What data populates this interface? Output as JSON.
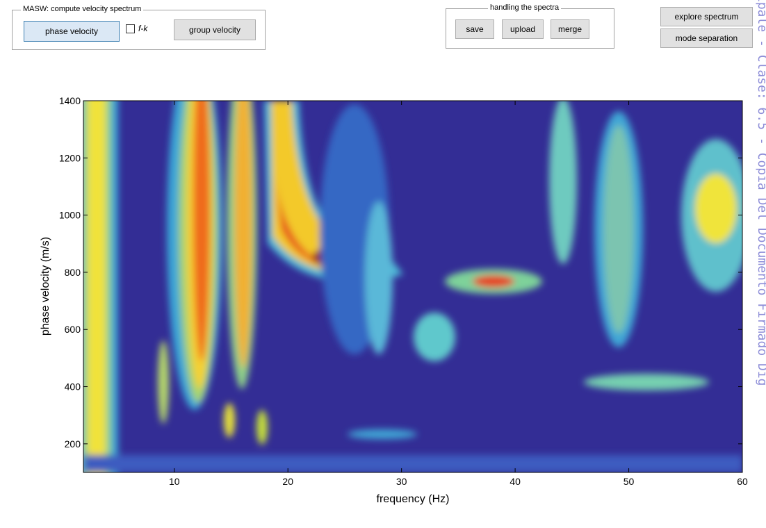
{
  "controls": {
    "masw_group": {
      "title": "MASW: compute velocity spectrum",
      "phase_button": "phase velocity",
      "checkbox_label": "f-k",
      "group_button": "group velocity"
    },
    "spectra_group": {
      "title": "handling the spectra",
      "buttons": [
        "save",
        "upload",
        "merge"
      ]
    },
    "side_buttons": [
      "explore spectrum",
      "mode separation"
    ]
  },
  "plot": {
    "xlabel": "frequency (Hz)",
    "ylabel": "phase velocity (m/s)",
    "xlim": [
      2,
      60
    ],
    "xticks": [
      10,
      20,
      30,
      40,
      50,
      60
    ],
    "ylim": [
      100,
      1400
    ],
    "yticks": [
      200,
      400,
      600,
      800,
      1000,
      1200,
      1400
    ]
  },
  "watermark": "ipale - Clase: 6.5 - Copia Del Documento Firmado Dig"
}
